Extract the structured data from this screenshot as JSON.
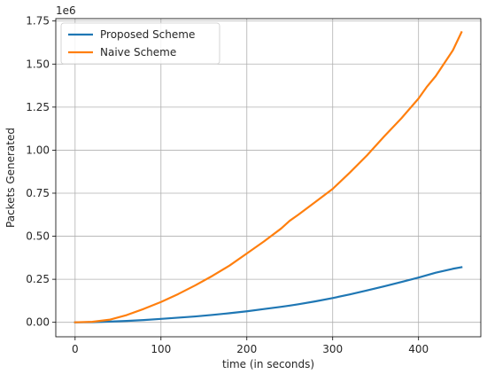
{
  "chart_data": {
    "type": "line",
    "xlabel": "time (in seconds)",
    "ylabel": "Packets Generated",
    "y_offset_label": "1e6",
    "xlim": [
      -22.5,
      472.5
    ],
    "ylim": [
      -84000,
      1764000
    ],
    "x_ticks": [
      0,
      100,
      200,
      300,
      400
    ],
    "x_tick_labels": [
      "0",
      "100",
      "200",
      "300",
      "400"
    ],
    "y_ticks": [
      0,
      250000,
      500000,
      750000,
      1000000,
      1250000,
      1500000,
      1750000
    ],
    "y_tick_labels": [
      "0.00",
      "0.25",
      "0.50",
      "0.75",
      "1.00",
      "1.25",
      "1.50",
      "1.75"
    ],
    "grid": true,
    "legend_position": "top-left",
    "x": [
      0,
      20,
      40,
      60,
      80,
      100,
      120,
      140,
      160,
      180,
      200,
      220,
      240,
      250,
      260,
      280,
      300,
      320,
      340,
      360,
      380,
      400,
      410,
      420,
      440,
      450
    ],
    "series": [
      {
        "name": "Proposed Scheme",
        "color": "#1f77b4",
        "values": [
          0,
          1000,
          4000,
          8000,
          13000,
          20000,
          27000,
          34000,
          43000,
          53000,
          64000,
          77000,
          90000,
          97000,
          105000,
          122000,
          141000,
          162000,
          185000,
          209000,
          234000,
          260000,
          274000,
          288000,
          311000,
          320000
        ]
      },
      {
        "name": "Naive Scheme",
        "color": "#ff7f0e",
        "values": [
          0,
          3000,
          15000,
          42000,
          78000,
          118000,
          164000,
          215000,
          270000,
          330000,
          400000,
          470000,
          545000,
          590000,
          625000,
          700000,
          775000,
          870000,
          970000,
          1080000,
          1185000,
          1300000,
          1370000,
          1430000,
          1580000,
          1685000
        ]
      }
    ]
  }
}
